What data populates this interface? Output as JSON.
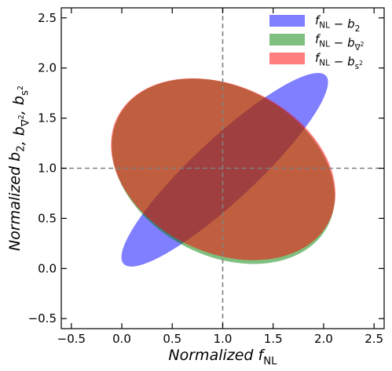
{
  "chart_data": {
    "type": "ellipse-contour",
    "xlabel": "Normalized f_NL",
    "ylabel": "Normalized b_2, b_∇², b_s²",
    "xlim": [
      -0.6,
      2.6
    ],
    "ylim": [
      -0.6,
      2.6
    ],
    "xticks": [
      "−0.5",
      "0.0",
      "0.5",
      "1.0",
      "1.5",
      "2.0",
      "2.5"
    ],
    "yticks": [
      "−0.5",
      "0.0",
      "0.5",
      "1.0",
      "1.5",
      "2.0",
      "2.5"
    ],
    "xtick_values": [
      -0.5,
      0.0,
      0.5,
      1.0,
      1.5,
      2.0,
      2.5
    ],
    "ytick_values": [
      -0.5,
      0.0,
      0.5,
      1.0,
      1.5,
      2.0,
      2.5
    ],
    "reference_lines": {
      "x": 1.0,
      "y": 1.0
    },
    "legend_position": "top-right",
    "series": [
      {
        "name": "f_NL − b_2",
        "color": "#0000ff",
        "opacity": 0.5,
        "ellipse": {
          "cx": 1.02,
          "cy": 0.985,
          "major_semi_axis": 1.37,
          "minor_semi_axis": 0.31,
          "angle_deg": -43
        }
      },
      {
        "name": "f_NL − b_∇²",
        "color": "#008000",
        "opacity": 0.5,
        "ellipse": {
          "cx": 1.005,
          "cy": 0.97,
          "major_semi_axis": 1.17,
          "minor_semi_axis": 0.84,
          "angle_deg": 28
        }
      },
      {
        "name": "f_NL − b_s²",
        "color": "#ff0000",
        "opacity": 0.5,
        "ellipse": {
          "cx": 1.005,
          "cy": 0.99,
          "major_semi_axis": 1.17,
          "minor_semi_axis": 0.83,
          "angle_deg": 26
        }
      }
    ]
  }
}
